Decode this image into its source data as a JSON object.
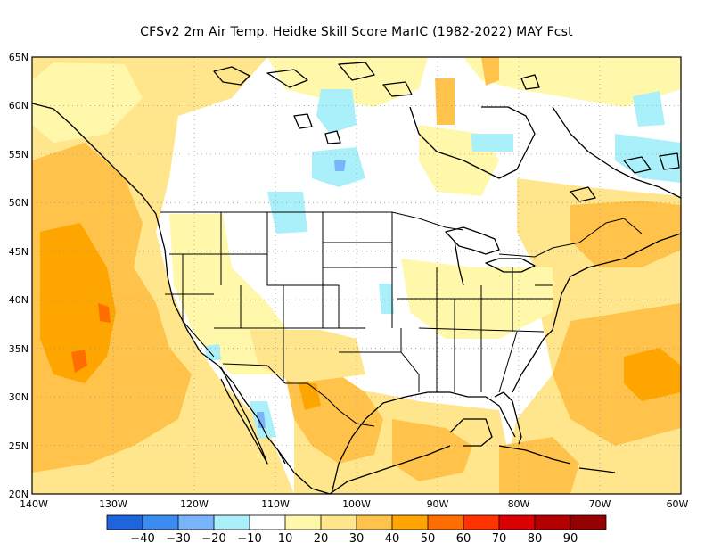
{
  "title": "CFSv2  2m Air Temp. Heidke Skill Score MarIC (1982-2022) MAY Fcst",
  "map": {
    "projection": "cylindrical-equidistant",
    "lon_range": [
      -140,
      -60
    ],
    "lat_range": [
      20,
      65
    ],
    "lat_labels": [
      "65N",
      "60N",
      "55N",
      "50N",
      "45N",
      "40N",
      "35N",
      "30N",
      "25N",
      "20N"
    ],
    "lon_labels": [
      "140W",
      "130W",
      "120W",
      "110W",
      "100W",
      "90W",
      "80W",
      "70W",
      "60W"
    ],
    "gridlines": "dotted"
  },
  "colorbar": {
    "colors": [
      "#1e64dc",
      "#3c8cf0",
      "#78b4fa",
      "#aaf0fa",
      "#ffffff",
      "#fff8aa",
      "#ffe68c",
      "#ffc34b",
      "#ffa500",
      "#ff6e00",
      "#ff3200",
      "#dc0000",
      "#b40000",
      "#960000"
    ],
    "labels": [
      "−40",
      "−30",
      "−20",
      "−10",
      "10",
      "20",
      "30",
      "40",
      "50",
      "60",
      "70",
      "80",
      "90"
    ]
  },
  "field": {
    "palette": {
      "w": "#ffffff",
      "c1": "#aaf0fa",
      "c2": "#78b4fa",
      "y1": "#fff8aa",
      "y2": "#ffe68c",
      "o1": "#ffc34b",
      "o2": "#ffa500",
      "o3": "#ff6e00"
    }
  }
}
